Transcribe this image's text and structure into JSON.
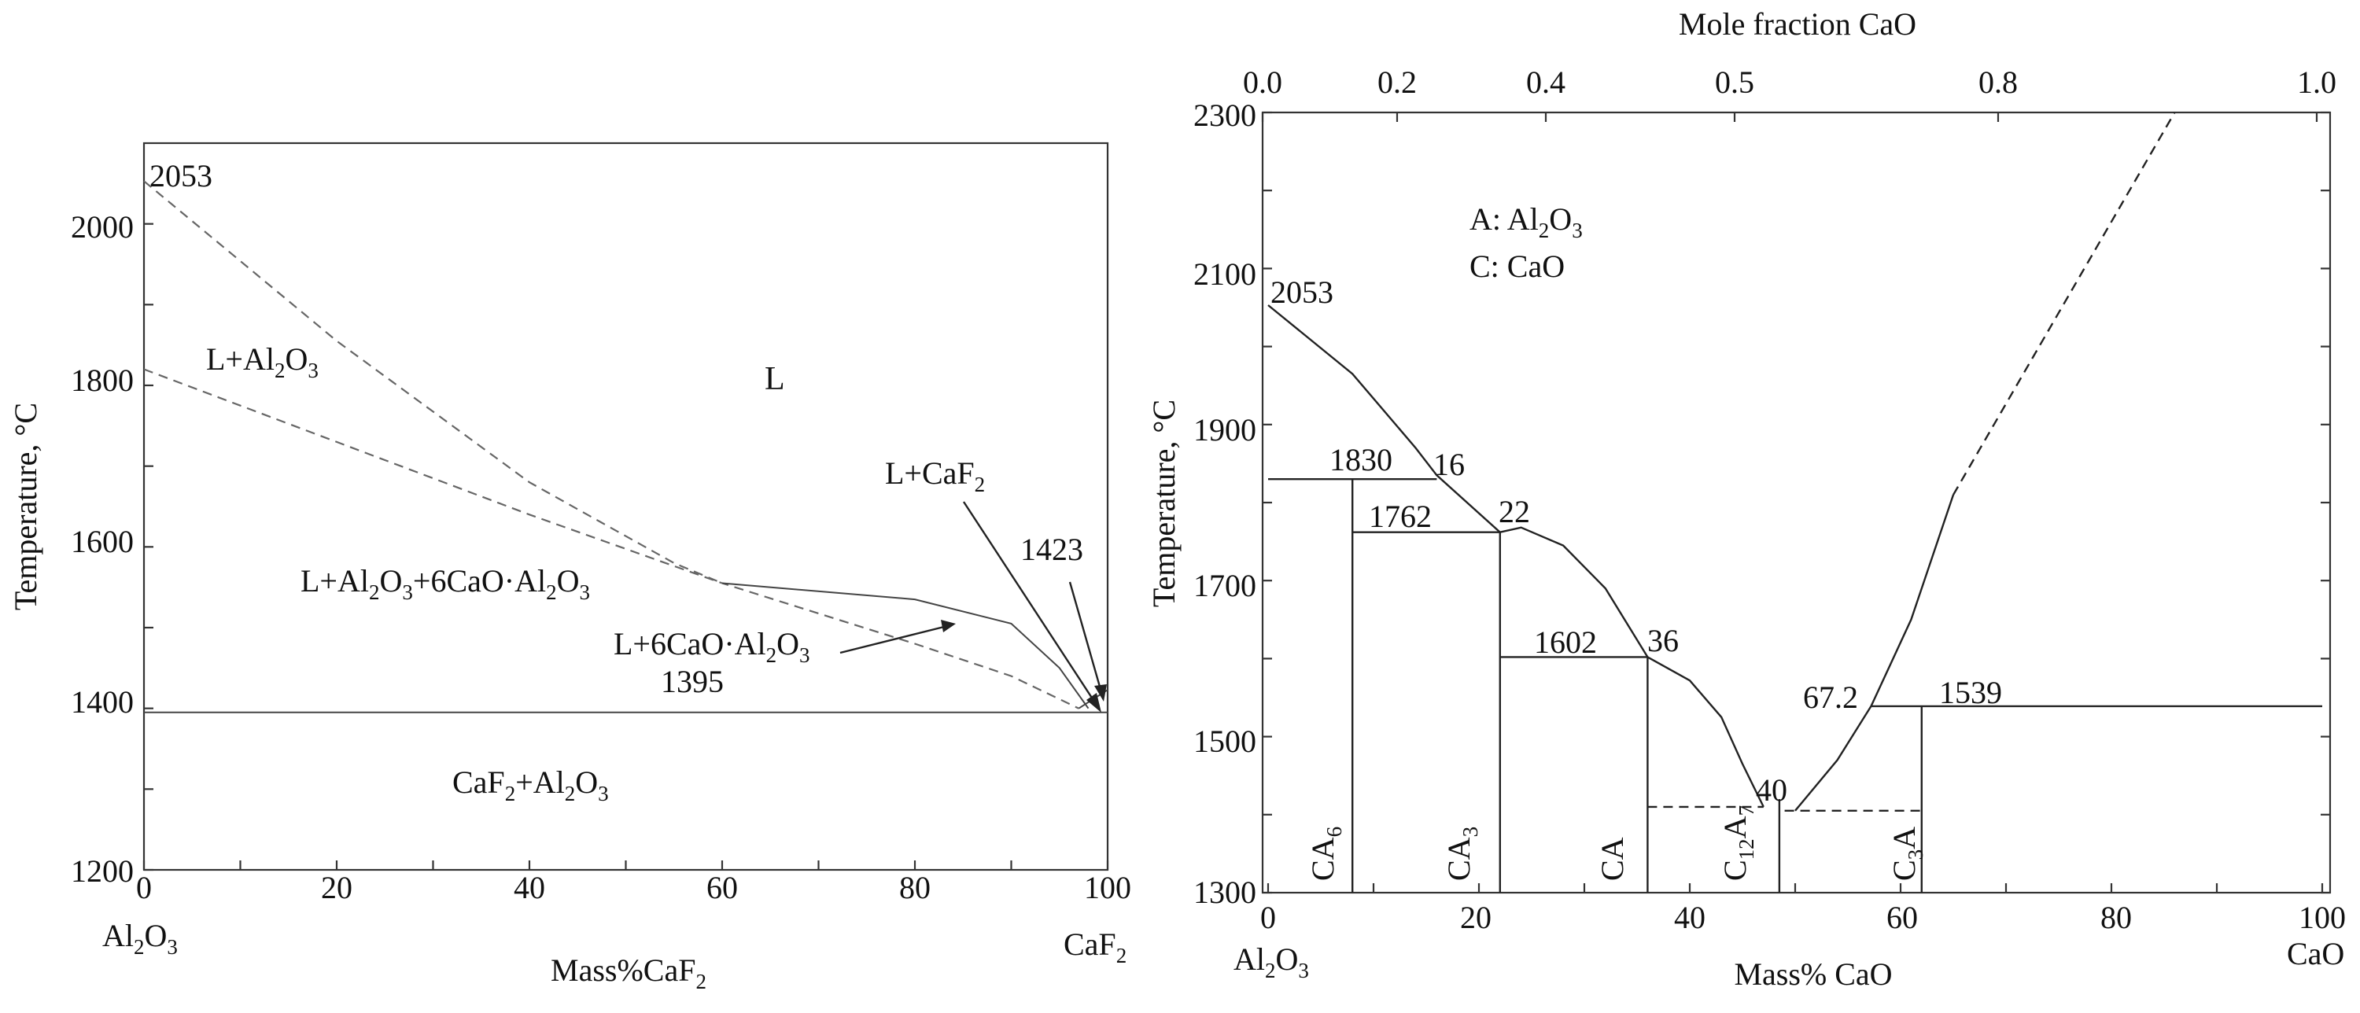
{
  "left": {
    "y_title": "Temperature, °C",
    "x_title": "Mass%CaF",
    "x_title_sub": "2",
    "ylim": [
      1200,
      2100
    ],
    "xlim": [
      0,
      100
    ],
    "y_ticks": [
      "1200",
      "1400",
      "1600",
      "1800",
      "2000"
    ],
    "x_ticks": [
      "0",
      "20",
      "40",
      "60",
      "80",
      "100"
    ],
    "end_left": "Al",
    "end_left_sub1": "2",
    "end_left_mid": "O",
    "end_left_sub2": "3",
    "end_right": "CaF",
    "end_right_sub": "2",
    "labels": {
      "t2053": "2053",
      "t1395": "1395",
      "t1423": "1423",
      "L": "L",
      "la_a": "L+Al",
      "la_b": "2",
      "la_c": "O",
      "la_d": "3",
      "lf_a": "L+CaF",
      "lf_b": "2",
      "l6_a": "L+6CaO·Al",
      "l6_b": "2",
      "l6_c": "O",
      "l6_d": "3",
      "l3_a": "L+Al",
      "l3_b": "2",
      "l3_c": "O",
      "l3_d": "3",
      "l3_e": "+6CaO·Al",
      "l3_f": "2",
      "l3_g": "O",
      "l3_h": "3",
      "cf_a": "CaF",
      "cf_b": "2",
      "cf_c": "+Al",
      "cf_d": "2",
      "cf_e": "O",
      "cf_f": "3"
    },
    "curves": {
      "upper_dashed": [
        [
          0,
          2053
        ],
        [
          20,
          1855
        ],
        [
          40,
          1680
        ],
        [
          55,
          1580
        ],
        [
          60,
          1555
        ]
      ],
      "lower_dashed": [
        [
          0,
          1820
        ],
        [
          20,
          1730
        ],
        [
          40,
          1640
        ],
        [
          60,
          1555
        ],
        [
          80,
          1480
        ],
        [
          90,
          1440
        ],
        [
          97,
          1400
        ]
      ],
      "solid_liquidus": [
        [
          60,
          1555
        ],
        [
          80,
          1535
        ],
        [
          90,
          1505
        ],
        [
          95,
          1450
        ],
        [
          98,
          1400
        ]
      ],
      "solid_bottom": [
        [
          97,
          1400
        ],
        [
          100,
          1423
        ]
      ],
      "eutectic_line": [
        [
          0,
          1395
        ],
        [
          100,
          1395
        ]
      ]
    }
  },
  "right": {
    "top_title": "Mole fraction CaO",
    "top_ticks": [
      "0.0",
      "0.2",
      "0.4",
      "0.5",
      "0.8",
      "1.0"
    ],
    "y_title": "Temperature, °C",
    "x_title": "Mass% CaO",
    "ylim": [
      1300,
      2300
    ],
    "xlim": [
      0,
      100
    ],
    "y_ticks": [
      "1300",
      "1500",
      "1700",
      "1900",
      "2100",
      "2300"
    ],
    "x_ticks": [
      "0",
      "20",
      "40",
      "60",
      "80",
      "100"
    ],
    "end_left": "Al",
    "end_left_sub1": "2",
    "end_left_mid": "O",
    "end_left_sub2": "3",
    "end_right": "CaO",
    "legend_a1": "A: Al",
    "legend_a_sub1": "2",
    "legend_a2": "O",
    "legend_a_sub2": "3",
    "legend_c": "C: CaO",
    "values": {
      "v2053": "2053",
      "v1830": "1830",
      "v16": "16",
      "v1762": "1762",
      "v22": "22",
      "v1602": "1602",
      "v36": "36",
      "v40": "40",
      "v67": "67.2",
      "v1539": "1539"
    },
    "phases": {
      "ca6": "CA",
      "ca6_sub": "6",
      "ca3": "CA",
      "ca3_sub": "3",
      "ca": "CA",
      "c12_a": "C",
      "c12_sub1": "12",
      "c12_b": "A",
      "c12_sub2": "7",
      "c3_a": "C",
      "c3_sub": "3",
      "c3_b": "A"
    },
    "curves": {
      "liq1": [
        [
          0,
          2053
        ],
        [
          8,
          1965
        ],
        [
          14,
          1870
        ],
        [
          16,
          1835
        ],
        [
          22,
          1762
        ]
      ],
      "liq2": [
        [
          22,
          1762
        ],
        [
          24,
          1768
        ],
        [
          28,
          1745
        ],
        [
          32,
          1690
        ],
        [
          36,
          1602
        ]
      ],
      "liq3": [
        [
          36,
          1602
        ],
        [
          40,
          1572
        ],
        [
          43,
          1525
        ],
        [
          45,
          1465
        ],
        [
          47,
          1410
        ]
      ],
      "liq4": [
        [
          50,
          1405
        ],
        [
          54,
          1470
        ],
        [
          57.2,
          1539
        ]
      ],
      "liq5": [
        [
          57.2,
          1539
        ],
        [
          61,
          1650
        ],
        [
          65,
          1810
        ]
      ],
      "liq5_dash": [
        [
          65,
          1810
        ],
        [
          86,
          2300
        ]
      ],
      "h1830": [
        [
          0,
          1830
        ],
        [
          16,
          1830
        ]
      ],
      "h1762": [
        [
          8,
          1762
        ],
        [
          22,
          1762
        ]
      ],
      "h1602": [
        [
          22,
          1602
        ],
        [
          36,
          1602
        ]
      ],
      "h1539": [
        [
          57.2,
          1539
        ],
        [
          100,
          1539
        ]
      ],
      "dash_low1": [
        [
          36,
          1410
        ],
        [
          47,
          1410
        ]
      ],
      "dash_low2": [
        [
          49,
          1405
        ],
        [
          62,
          1405
        ]
      ],
      "v_ca6": [
        8,
        1830
      ],
      "v_ca3": [
        22,
        1762
      ],
      "v_ca": [
        36,
        1602
      ],
      "v_c12": [
        48.5,
        1420
      ],
      "v_c3": [
        62,
        1539
      ]
    }
  }
}
